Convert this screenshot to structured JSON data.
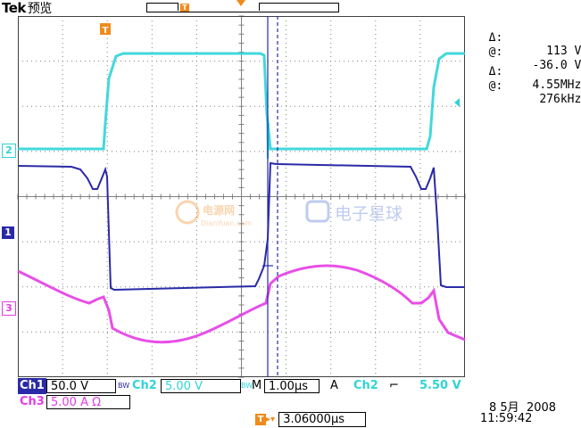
{
  "brand": {
    "name": "Tek",
    "mode": "预览"
  },
  "colors": {
    "ch1": "#2a2aa8",
    "ch2": "#2ed4d8",
    "ch3": "#e43ce4",
    "accent": "#f08a1c",
    "grid": "#808080"
  },
  "measurements": {
    "voltage_delta_label": "Δ:",
    "voltage_delta": "113 V",
    "voltage_cursor_label": "@:",
    "voltage_cursor": "-36.0 V",
    "freq_delta_label": "Δ:",
    "freq_delta": "4.55MHz",
    "freq_cursor_label": "@:",
    "freq_cursor": "276kHz"
  },
  "channel_markers": {
    "ch2": "2",
    "ch1": "1",
    "ch3": "3",
    "trigger": "T"
  },
  "status": {
    "ch1_label": "Ch1",
    "ch1_scale": "50.0 V",
    "bw1": "BW",
    "ch2_label": "Ch2",
    "ch2_scale": "5.00 V",
    "bw2": "BW",
    "timebase_label": "M",
    "timebase": "1.00µs",
    "trigger_mode": "A",
    "trigger_source": "Ch2",
    "trigger_slope": "⌐",
    "trigger_level": "5.50 V",
    "ch3_label": "Ch3",
    "ch3_scale": "5.00 A Ω",
    "delay_marker": "T",
    "delay": "3.06000µs",
    "date": "8 5月  2008",
    "time": "11:59:42"
  },
  "watermark": {
    "left": "电源网",
    "left_sub": "DianYuan.com",
    "right": "电子星球"
  }
}
